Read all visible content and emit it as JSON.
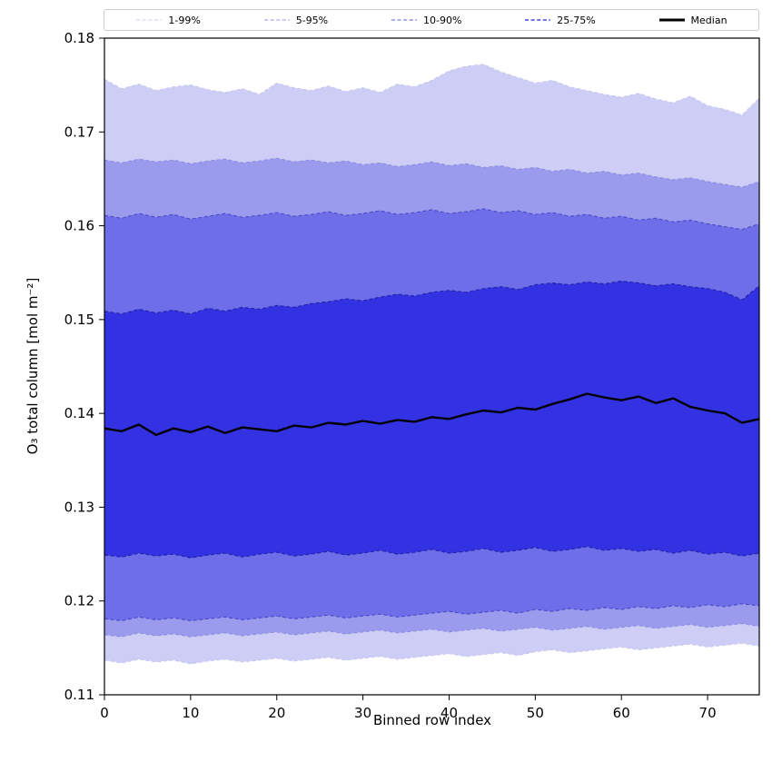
{
  "chart_data": {
    "type": "area",
    "title": "",
    "xlabel": "Binned row index",
    "ylabel": "O₃ total column [mol m⁻²]",
    "grid": false,
    "legend_position": "top",
    "xlim": [
      0,
      76
    ],
    "ylim": [
      0.11,
      0.18
    ],
    "xticks": [
      0,
      10,
      20,
      30,
      40,
      50,
      60,
      70
    ],
    "xtick_labels": [
      "0",
      "10",
      "20",
      "30",
      "40",
      "50",
      "60",
      "70"
    ],
    "yticks": [
      0.11,
      0.12,
      0.13,
      0.14,
      0.15,
      0.16,
      0.17,
      0.18
    ],
    "ytick_labels": [
      "0.11",
      "0.12",
      "0.13",
      "0.14",
      "0.15",
      "0.16",
      "0.17",
      "0.18"
    ],
    "x": [
      0,
      2,
      4,
      6,
      8,
      10,
      12,
      14,
      16,
      18,
      20,
      22,
      24,
      26,
      28,
      30,
      32,
      34,
      36,
      38,
      40,
      42,
      44,
      46,
      48,
      50,
      52,
      54,
      56,
      58,
      60,
      62,
      64,
      66,
      68,
      70,
      72,
      74,
      76
    ],
    "bands": [
      {
        "name": "1-99%",
        "fill": "#cdcdf5",
        "edge": "#c9c9ef",
        "lower": [
          0.1137,
          0.1134,
          0.1138,
          0.1135,
          0.1137,
          0.1133,
          0.1136,
          0.1138,
          0.1135,
          0.1137,
          0.1139,
          0.1136,
          0.1138,
          0.114,
          0.1137,
          0.1139,
          0.1141,
          0.1138,
          0.114,
          0.1142,
          0.1144,
          0.1141,
          0.1143,
          0.1145,
          0.1142,
          0.1146,
          0.1148,
          0.1145,
          0.1147,
          0.1149,
          0.1151,
          0.1148,
          0.115,
          0.1152,
          0.1154,
          0.1151,
          0.1153,
          0.1155,
          0.1152
        ],
        "upper": [
          0.1756,
          0.1746,
          0.1751,
          0.1744,
          0.1748,
          0.175,
          0.1745,
          0.1742,
          0.1746,
          0.174,
          0.1752,
          0.1747,
          0.1744,
          0.1749,
          0.1743,
          0.1747,
          0.1742,
          0.1751,
          0.1748,
          0.1755,
          0.1765,
          0.177,
          0.1772,
          0.1764,
          0.1758,
          0.1752,
          0.1755,
          0.1748,
          0.1744,
          0.174,
          0.1737,
          0.1741,
          0.1735,
          0.1731,
          0.1738,
          0.1728,
          0.1724,
          0.1718,
          0.1736
        ]
      },
      {
        "name": "5-95%",
        "fill": "#9b9bee",
        "edge": "#8f8fe2",
        "lower": [
          0.1164,
          0.1162,
          0.1166,
          0.1163,
          0.1165,
          0.1162,
          0.1164,
          0.1166,
          0.1163,
          0.1165,
          0.1167,
          0.1164,
          0.1166,
          0.1168,
          0.1165,
          0.1167,
          0.1169,
          0.1166,
          0.1168,
          0.117,
          0.1167,
          0.1169,
          0.1171,
          0.1168,
          0.117,
          0.1172,
          0.1169,
          0.1171,
          0.1173,
          0.117,
          0.1172,
          0.1174,
          0.1171,
          0.1173,
          0.1175,
          0.1172,
          0.1174,
          0.1176,
          0.1173
        ],
        "upper": [
          0.167,
          0.1667,
          0.1671,
          0.1668,
          0.167,
          0.1666,
          0.1669,
          0.1671,
          0.1667,
          0.1669,
          0.1672,
          0.1668,
          0.167,
          0.1667,
          0.1669,
          0.1665,
          0.1667,
          0.1663,
          0.1665,
          0.1668,
          0.1664,
          0.1666,
          0.1662,
          0.1664,
          0.166,
          0.1662,
          0.1658,
          0.166,
          0.1656,
          0.1658,
          0.1654,
          0.1656,
          0.1652,
          0.1649,
          0.1651,
          0.1647,
          0.1644,
          0.1641,
          0.1647
        ]
      },
      {
        "name": "10-90%",
        "fill": "#6e6ee9",
        "edge": "#4d4dc9",
        "lower": [
          0.1181,
          0.1179,
          0.1183,
          0.118,
          0.1182,
          0.1179,
          0.1181,
          0.1183,
          0.118,
          0.1182,
          0.1184,
          0.1181,
          0.1183,
          0.1185,
          0.1182,
          0.1184,
          0.1186,
          0.1183,
          0.1185,
          0.1187,
          0.1189,
          0.1186,
          0.1188,
          0.119,
          0.1187,
          0.1191,
          0.1189,
          0.1192,
          0.119,
          0.1193,
          0.1191,
          0.1194,
          0.1192,
          0.1195,
          0.1193,
          0.1196,
          0.1194,
          0.1197,
          0.1195
        ],
        "upper": [
          0.1611,
          0.1608,
          0.1613,
          0.1609,
          0.1612,
          0.1607,
          0.161,
          0.1613,
          0.1609,
          0.1611,
          0.1614,
          0.161,
          0.1612,
          0.1615,
          0.1611,
          0.1613,
          0.1616,
          0.1612,
          0.1614,
          0.1617,
          0.1613,
          0.1615,
          0.1618,
          0.1614,
          0.1616,
          0.1612,
          0.1614,
          0.161,
          0.1612,
          0.1608,
          0.161,
          0.1606,
          0.1608,
          0.1604,
          0.1606,
          0.1602,
          0.1599,
          0.1596,
          0.1602
        ]
      },
      {
        "name": "25-75%",
        "fill": "#3232e2",
        "edge": "#2424ad",
        "lower": [
          0.1249,
          0.1247,
          0.1251,
          0.1248,
          0.125,
          0.1246,
          0.1249,
          0.1251,
          0.1247,
          0.125,
          0.1252,
          0.1248,
          0.125,
          0.1253,
          0.1249,
          0.1251,
          0.1254,
          0.125,
          0.1252,
          0.1255,
          0.1251,
          0.1253,
          0.1256,
          0.1252,
          0.1254,
          0.1257,
          0.1253,
          0.1255,
          0.1258,
          0.1254,
          0.1256,
          0.1253,
          0.1255,
          0.1251,
          0.1254,
          0.125,
          0.1252,
          0.1248,
          0.1251
        ],
        "upper": [
          0.1509,
          0.1506,
          0.1511,
          0.1507,
          0.151,
          0.1506,
          0.1512,
          0.1509,
          0.1513,
          0.1511,
          0.1515,
          0.1513,
          0.1517,
          0.1519,
          0.1522,
          0.152,
          0.1524,
          0.1527,
          0.1525,
          0.1529,
          0.1531,
          0.1529,
          0.1533,
          0.1535,
          0.1532,
          0.1537,
          0.1539,
          0.1537,
          0.154,
          0.1538,
          0.1541,
          0.1539,
          0.1536,
          0.1538,
          0.1535,
          0.1533,
          0.1529,
          0.1521,
          0.1536
        ]
      }
    ],
    "median": {
      "name": "Median",
      "color": "#000000",
      "values": [
        0.1384,
        0.1381,
        0.1388,
        0.1377,
        0.1384,
        0.138,
        0.1386,
        0.1379,
        0.1385,
        0.1383,
        0.1381,
        0.1387,
        0.1385,
        0.139,
        0.1388,
        0.1392,
        0.1389,
        0.1393,
        0.1391,
        0.1396,
        0.1394,
        0.1399,
        0.1403,
        0.1401,
        0.1406,
        0.1404,
        0.141,
        0.1415,
        0.1421,
        0.1417,
        0.1414,
        0.1418,
        0.1411,
        0.1416,
        0.1407,
        0.1403,
        0.14,
        0.139,
        0.1394
      ]
    },
    "legend": [
      {
        "label": "1-99%",
        "color": "#d7d7f2",
        "dash": true,
        "width": 1.2
      },
      {
        "label": "5-95%",
        "color": "#ababef",
        "dash": true,
        "width": 1.2
      },
      {
        "label": "10-90%",
        "color": "#7b7be8",
        "dash": true,
        "width": 1.2
      },
      {
        "label": "25-75%",
        "color": "#4444dd",
        "dash": true,
        "width": 1.6
      },
      {
        "label": "Median",
        "color": "#000000",
        "dash": false,
        "width": 3
      }
    ]
  }
}
